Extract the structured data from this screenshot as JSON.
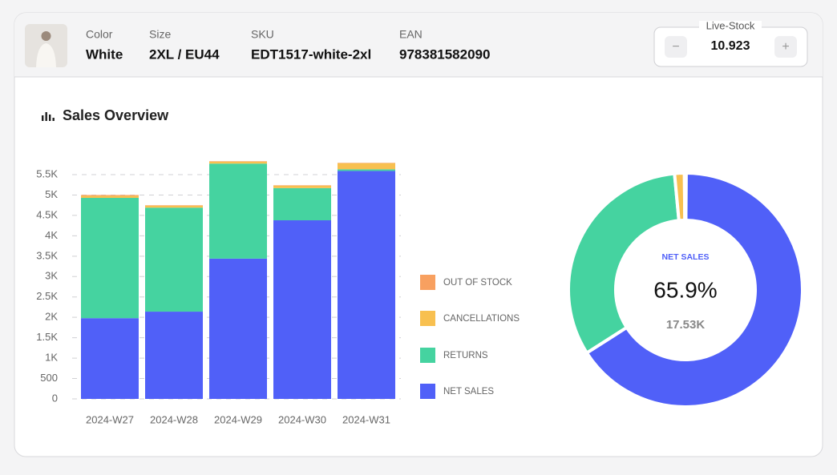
{
  "header": {
    "fields": [
      {
        "label": "Color",
        "value": "White"
      },
      {
        "label": "Size",
        "value": "2XL / EU44"
      },
      {
        "label": "SKU",
        "value": "EDT1517-white-2xl"
      },
      {
        "label": "EAN",
        "value": "978381582090"
      }
    ],
    "stock": {
      "label": "Live-Stock",
      "value": "10.923",
      "minus": "−",
      "plus": "+"
    }
  },
  "section_title": "Sales Overview",
  "chart_data": [
    {
      "type": "stacked_bar",
      "categories": [
        "2024-W27",
        "2024-W28",
        "2024-W29",
        "2024-W30",
        "2024-W31"
      ],
      "series": [
        {
          "name": "NET SALES",
          "color": "#5060f8",
          "values": [
            1980,
            2140,
            3440,
            4380,
            5590
          ]
        },
        {
          "name": "RETURNS",
          "color": "#45d3a0",
          "values": [
            2950,
            2550,
            2330,
            790,
            40
          ]
        },
        {
          "name": "CANCELLATIONS",
          "color": "#f8c050",
          "values": [
            50,
            50,
            50,
            60,
            150
          ]
        },
        {
          "name": "OUT OF STOCK",
          "color": "#f8a060",
          "values": [
            20,
            10,
            10,
            10,
            10
          ]
        }
      ],
      "ylim": [
        0,
        5800
      ],
      "yticks": [
        0,
        500,
        {
          "value": 1000,
          "label": "1K"
        },
        {
          "value": 1500,
          "label": "1.5K"
        },
        {
          "value": 2000,
          "label": "2K"
        },
        {
          "value": 2500,
          "label": "2.5K"
        },
        {
          "value": 3000,
          "label": "3K"
        },
        {
          "value": 3500,
          "label": "3.5K"
        },
        {
          "value": 4000,
          "label": "4K"
        },
        {
          "value": 4500,
          "label": "4.5K"
        },
        {
          "value": 5000,
          "label": "5K"
        },
        {
          "value": 5500,
          "label": "5.5K"
        }
      ],
      "grid": true
    },
    {
      "type": "donut",
      "categories": [
        "NET SALES",
        "RETURNS",
        "CANCELLATIONS",
        "OUT OF STOCK"
      ],
      "colors": [
        "#5060f8",
        "#45d3a0",
        "#f8c050",
        "#f8a060"
      ],
      "values": [
        17530,
        8660,
        360,
        60
      ],
      "center_title": "NET SALES",
      "center_value": "65.9%",
      "center_total": "17.53K"
    }
  ]
}
